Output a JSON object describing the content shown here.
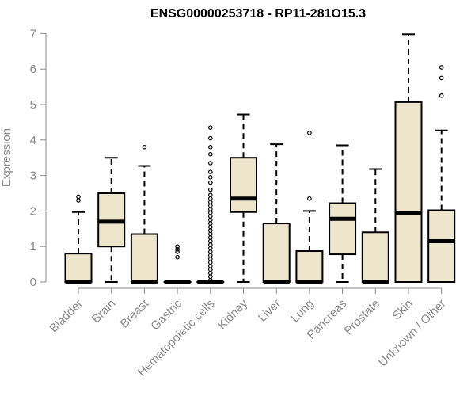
{
  "chart_data": {
    "type": "box",
    "title": "ENSG00000253718 - RP11-281O15.3",
    "xlabel": "",
    "ylabel": "Expression",
    "ylim": [
      0,
      7
    ],
    "yticks": [
      0,
      1,
      2,
      3,
      4,
      5,
      6,
      7
    ],
    "categories": [
      "Bladder",
      "Brain",
      "Breast",
      "Gastric",
      "Hematopoietic cells",
      "Kidney",
      "Liver",
      "Lung",
      "Pancreas",
      "Prostate",
      "Skin",
      "Unknown / Other"
    ],
    "boxes": [
      {
        "min": 0,
        "q1": 0,
        "median": 0,
        "q3": 0.8,
        "max": 1.97,
        "outliers": [
          2.3,
          2.4
        ]
      },
      {
        "min": 0,
        "q1": 1.0,
        "median": 1.7,
        "q3": 2.5,
        "max": 3.5,
        "outliers": []
      },
      {
        "min": 0,
        "q1": 0,
        "median": 0,
        "q3": 1.35,
        "max": 3.27,
        "outliers": [
          3.8
        ]
      },
      {
        "min": 0,
        "q1": 0,
        "median": 0,
        "q3": 0,
        "max": 0,
        "outliers": [
          0.7,
          0.85,
          0.92,
          1.0
        ]
      },
      {
        "min": 0,
        "q1": 0,
        "median": 0,
        "q3": 0,
        "max": 0,
        "outliers": [
          0.05,
          0.15,
          0.25,
          0.35,
          0.45,
          0.55,
          0.65,
          0.75,
          0.85,
          0.95,
          1.05,
          1.15,
          1.25,
          1.35,
          1.45,
          1.55,
          1.65,
          1.75,
          1.85,
          1.95,
          2.05,
          2.15,
          2.25,
          2.35,
          2.45,
          2.6,
          2.8,
          2.95,
          3.1,
          3.35,
          3.6,
          3.8,
          4.05,
          4.35
        ]
      },
      {
        "min": 0,
        "q1": 1.97,
        "median": 2.35,
        "q3": 3.5,
        "max": 4.72,
        "outliers": []
      },
      {
        "min": 0,
        "q1": 0,
        "median": 0,
        "q3": 1.65,
        "max": 3.88,
        "outliers": []
      },
      {
        "min": 0,
        "q1": 0,
        "median": 0,
        "q3": 0.87,
        "max": 2.0,
        "outliers": [
          2.35,
          4.2
        ]
      },
      {
        "min": 0,
        "q1": 0.78,
        "median": 1.78,
        "q3": 2.22,
        "max": 3.85,
        "outliers": []
      },
      {
        "min": 0,
        "q1": 0,
        "median": 0,
        "q3": 1.4,
        "max": 3.18,
        "outliers": []
      },
      {
        "min": 0,
        "q1": 0,
        "median": 1.95,
        "q3": 5.07,
        "max": 6.98,
        "outliers": []
      },
      {
        "min": 0,
        "q1": 0,
        "median": 1.15,
        "q3": 2.02,
        "max": 4.27,
        "outliers": [
          5.25,
          5.75,
          6.05
        ]
      }
    ],
    "box_fill": "#ede6cd",
    "axis_color": "#888888",
    "grid": false
  }
}
